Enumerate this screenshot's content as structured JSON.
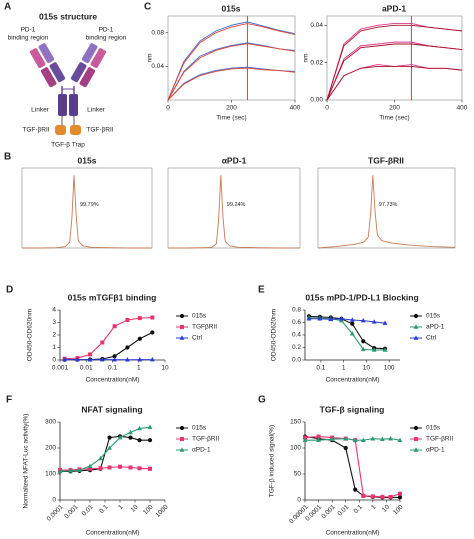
{
  "diagram": {
    "panel": "A",
    "title": "015s structure",
    "left_label": [
      "PD-1",
      "binding region"
    ],
    "right_label": [
      "PD-1",
      "binding region"
    ],
    "left_linker": "Linker",
    "right_linker": "Linker",
    "left_trap": "TGF-βRII",
    "right_trap": "TGF-βRII",
    "trap": "TGF-β Trap"
  },
  "chart_data": [
    {
      "panel": "C",
      "type": "line",
      "title": "015s",
      "xlabel": "Time (sec)",
      "ylabel": "nm",
      "frame": true,
      "xlim": [
        0,
        400
      ],
      "ylim": [
        0,
        0.1
      ],
      "xticks": [
        0,
        200,
        400
      ],
      "yticks": [
        0.04,
        0.08
      ],
      "vline": 250,
      "x": [
        0,
        50,
        100,
        150,
        200,
        250,
        300,
        350,
        400
      ],
      "series": [
        {
          "color": "#3a6fd8",
          "values": [
            0,
            0.046,
            0.07,
            0.082,
            0.089,
            0.093,
            0.088,
            0.083,
            0.079
          ]
        },
        {
          "color": "#e8452c",
          "values": [
            0,
            0.044,
            0.068,
            0.08,
            0.087,
            0.091,
            0.087,
            0.082,
            0.078
          ]
        },
        {
          "color": "#3a6fd8",
          "values": [
            0,
            0.034,
            0.052,
            0.06,
            0.065,
            0.068,
            0.065,
            0.061,
            0.059
          ]
        },
        {
          "color": "#e8452c",
          "values": [
            0,
            0.033,
            0.05,
            0.059,
            0.064,
            0.067,
            0.064,
            0.061,
            0.058
          ]
        },
        {
          "color": "#3a6fd8",
          "values": [
            0,
            0.02,
            0.03,
            0.035,
            0.038,
            0.039,
            0.037,
            0.035,
            0.034
          ]
        },
        {
          "color": "#e8452c",
          "values": [
            0,
            0.019,
            0.029,
            0.034,
            0.037,
            0.038,
            0.036,
            0.035,
            0.033
          ]
        }
      ]
    },
    {
      "type": "line",
      "title": "aPD-1",
      "xlabel": "Time (sec)",
      "ylabel": "nm",
      "frame": true,
      "xlim": [
        0,
        400
      ],
      "ylim": [
        0,
        0.045
      ],
      "xticks": [
        0,
        200,
        400
      ],
      "yticks": [
        {
          "value": 0,
          "label": "0.00"
        },
        0.02,
        0.04
      ],
      "vline": 250,
      "x": [
        0,
        50,
        100,
        150,
        200,
        250,
        300,
        350,
        400
      ],
      "series": [
        {
          "color": "#e0368a",
          "values": [
            0,
            0.03,
            0.038,
            0.04,
            0.041,
            0.041,
            0.039,
            0.038,
            0.037
          ]
        },
        {
          "color": "#a8102a",
          "values": [
            0,
            0.029,
            0.037,
            0.039,
            0.04,
            0.04,
            0.039,
            0.038,
            0.037
          ]
        },
        {
          "color": "#e0368a",
          "values": [
            0,
            0.022,
            0.029,
            0.03,
            0.031,
            0.031,
            0.029,
            0.028,
            0.027
          ]
        },
        {
          "color": "#a8102a",
          "values": [
            0,
            0.021,
            0.028,
            0.029,
            0.03,
            0.03,
            0.029,
            0.028,
            0.027
          ]
        },
        {
          "color": "#e0368a",
          "values": [
            0,
            0.013,
            0.017,
            0.019,
            0.018,
            0.019,
            0.017,
            0.017,
            0.016
          ]
        },
        {
          "color": "#a8102a",
          "values": [
            0,
            0.013,
            0.017,
            0.018,
            0.018,
            0.018,
            0.017,
            0.017,
            0.016
          ]
        }
      ]
    },
    {
      "panel": "B",
      "type": "line",
      "title": "015s",
      "annotation": "99.79%",
      "frame": true,
      "xlim": [
        0,
        30
      ],
      "ylim": [
        0,
        110
      ],
      "x": [
        0,
        4,
        8,
        10,
        11,
        11.5,
        12,
        12.5,
        13,
        14,
        16,
        20,
        25,
        30
      ],
      "series": [
        {
          "color": "#c97a50",
          "values": [
            0,
            0,
            0.5,
            2,
            8,
            40,
            100,
            45,
            10,
            3,
            1,
            0.5,
            0,
            0
          ]
        }
      ]
    },
    {
      "type": "line",
      "title": "αPD-1",
      "annotation": "99.24%",
      "frame": true,
      "xlim": [
        0,
        30
      ],
      "ylim": [
        0,
        110
      ],
      "x": [
        0,
        4,
        8,
        10,
        11,
        11.5,
        12,
        12.5,
        13,
        14,
        16,
        20,
        25,
        30
      ],
      "series": [
        {
          "color": "#c97a50",
          "values": [
            0,
            0,
            0.5,
            1,
            6,
            38,
            100,
            42,
            9,
            3,
            1,
            0.5,
            0,
            0
          ]
        }
      ]
    },
    {
      "type": "line",
      "title": "TGF-βRII",
      "annotation": "97.73%",
      "frame": true,
      "xlim": [
        0,
        30
      ],
      "ylim": [
        0,
        110
      ],
      "x": [
        0,
        4,
        8,
        10,
        11,
        11.5,
        12,
        12.5,
        13,
        14,
        16,
        20,
        25,
        30
      ],
      "series": [
        {
          "color": "#c97a50",
          "values": [
            0,
            2,
            5,
            8,
            15,
            45,
            100,
            50,
            18,
            10,
            7,
            4,
            2,
            1
          ]
        }
      ]
    },
    {
      "panel": "D",
      "type": "scatter",
      "title": "015s mTGFβ1 binding",
      "xlabel": "Concentration(nM)",
      "ylabel": "OD450-OD620nm",
      "xlog": true,
      "legend": "right",
      "xlim": [
        0.001,
        10
      ],
      "ylim": [
        0,
        4
      ],
      "xticks": [
        0.001,
        0.01,
        0.1,
        1,
        10
      ],
      "yticks": [
        0,
        1,
        2,
        3,
        4
      ],
      "x": [
        0.0015,
        0.0046,
        0.014,
        0.041,
        0.12,
        0.37,
        1.1,
        3.3
      ],
      "series": [
        {
          "name": "015s",
          "color": "#111111",
          "marker": "circle",
          "values": [
            0.03,
            0.03,
            0.04,
            0.08,
            0.3,
            1.0,
            1.7,
            2.2
          ]
        },
        {
          "name": "TGFβRII",
          "color": "#e8336d",
          "marker": "square",
          "values": [
            0.1,
            0.15,
            0.45,
            1.4,
            2.7,
            3.2,
            3.35,
            3.4
          ]
        },
        {
          "name": "Ctrl",
          "color": "#2a3bd4",
          "marker": "triangle",
          "values": [
            0.03,
            0.03,
            0.02,
            0.03,
            0.03,
            0.02,
            0.03,
            0.03
          ]
        }
      ]
    },
    {
      "panel": "E",
      "type": "scatter",
      "title": "015s mPD-1/PD-L1 Blocking",
      "xlabel": "Concentration(nM)",
      "ylabel": "OD450-OD620nm",
      "xlog": true,
      "legend": "right",
      "xlim": [
        0.02,
        300
      ],
      "ylim": [
        0,
        0.8
      ],
      "xticks": [
        0.1,
        1,
        10,
        100
      ],
      "yticks": [
        {
          "value": 0,
          "label": "0.0"
        },
        0.2,
        0.4,
        0.6,
        0.8
      ],
      "x": [
        0.03,
        0.09,
        0.27,
        0.8,
        2.4,
        7.3,
        22,
        66
      ],
      "series": [
        {
          "name": "015s",
          "color": "#111111",
          "marker": "circle",
          "values": [
            0.7,
            0.69,
            0.68,
            0.66,
            0.58,
            0.3,
            0.19,
            0.18
          ]
        },
        {
          "name": "aPD-1",
          "color": "#2b9a77",
          "marker": "triangle",
          "values": [
            0.68,
            0.67,
            0.66,
            0.63,
            0.42,
            0.17,
            0.16,
            0.16
          ]
        },
        {
          "name": "Ctrl",
          "color": "#2a3bd4",
          "marker": "triangle",
          "values": [
            0.66,
            0.66,
            0.65,
            0.66,
            0.64,
            0.63,
            0.61,
            0.59
          ]
        }
      ]
    },
    {
      "panel": "F",
      "type": "scatter",
      "title": "NFAT signaling",
      "xlabel": "Concentration(nM)",
      "ylabel": "Normalized NFAT-Luc activity(%)",
      "xlog": true,
      "legend": "right",
      "xlim": [
        0.0001,
        1000
      ],
      "ylim": [
        0,
        300
      ],
      "xticks": [
        0.0001,
        0.001,
        0.01,
        0.1,
        1,
        10,
        100,
        1000
      ],
      "yticks": [
        0,
        100,
        200,
        300
      ],
      "x": [
        0.0001,
        0.0005,
        0.002,
        0.01,
        0.05,
        0.2,
        1,
        5,
        20,
        100
      ],
      "series": [
        {
          "name": "015s",
          "color": "#111111",
          "marker": "circle",
          "values": [
            110,
            110,
            112,
            115,
            120,
            240,
            245,
            240,
            230,
            230
          ]
        },
        {
          "name": "TGF-βRII",
          "color": "#e8336d",
          "marker": "square",
          "values": [
            115,
            115,
            118,
            120,
            122,
            125,
            128,
            125,
            122,
            120
          ]
        },
        {
          "name": "αPD-1",
          "color": "#2b9a77",
          "marker": "triangle",
          "values": [
            110,
            112,
            115,
            130,
            160,
            200,
            240,
            260,
            275,
            280
          ]
        }
      ]
    },
    {
      "panel": "G",
      "type": "scatter",
      "title": "TGF-β signaling",
      "xlabel": "Concentration(nM)",
      "ylabel": "TGF-β induced signal(%)",
      "xlog": true,
      "legend": "right",
      "xlim": [
        1e-05,
        100
      ],
      "ylim": [
        0,
        150
      ],
      "xticks": [
        {
          "value": 1e-05,
          "label": "0.00001"
        },
        0.0001,
        0.001,
        0.01,
        0.1,
        1,
        10,
        100
      ],
      "yticks": [
        0,
        50,
        100,
        150
      ],
      "x": [
        1e-05,
        0.0001,
        0.001,
        0.01,
        0.05,
        0.2,
        1,
        5,
        20,
        100
      ],
      "series": [
        {
          "name": "015s",
          "color": "#111111",
          "marker": "circle",
          "values": [
            122,
            118,
            115,
            100,
            20,
            8,
            6,
            5,
            5,
            5
          ]
        },
        {
          "name": "TGF-βRII",
          "color": "#e8336d",
          "marker": "square",
          "values": [
            120,
            122,
            120,
            118,
            115,
            8,
            7,
            6,
            6,
            12
          ]
        },
        {
          "name": "αPD-1",
          "color": "#2b9a77",
          "marker": "triangle",
          "values": [
            115,
            115,
            117,
            118,
            115,
            115,
            118,
            117,
            118,
            115
          ]
        }
      ]
    }
  ]
}
